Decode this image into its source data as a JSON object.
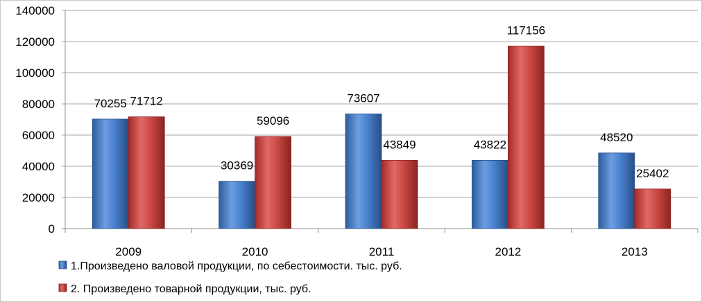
{
  "chart_data": {
    "type": "bar",
    "categories": [
      "2009",
      "2010",
      "2011",
      "2012",
      "2013"
    ],
    "series": [
      {
        "name": "1.Произведено валовой продукции, по себестоимости.  тыс. руб.",
        "values": [
          70255,
          30369,
          73607,
          43822,
          48520
        ],
        "color": "#4f81bd"
      },
      {
        "name": "2. Произведено товарной продукции, тыс. руб.",
        "values": [
          71712,
          59096,
          43849,
          117156,
          25402
        ],
        "color": "#c0504d"
      }
    ],
    "ylim": [
      0,
      140000
    ],
    "yticks": [
      "0",
      "20000",
      "40000",
      "60000",
      "80000",
      "100000",
      "120000",
      "140000"
    ],
    "grid": true,
    "legend_position": "bottom-left",
    "title": "",
    "xlabel": "",
    "ylabel": ""
  }
}
